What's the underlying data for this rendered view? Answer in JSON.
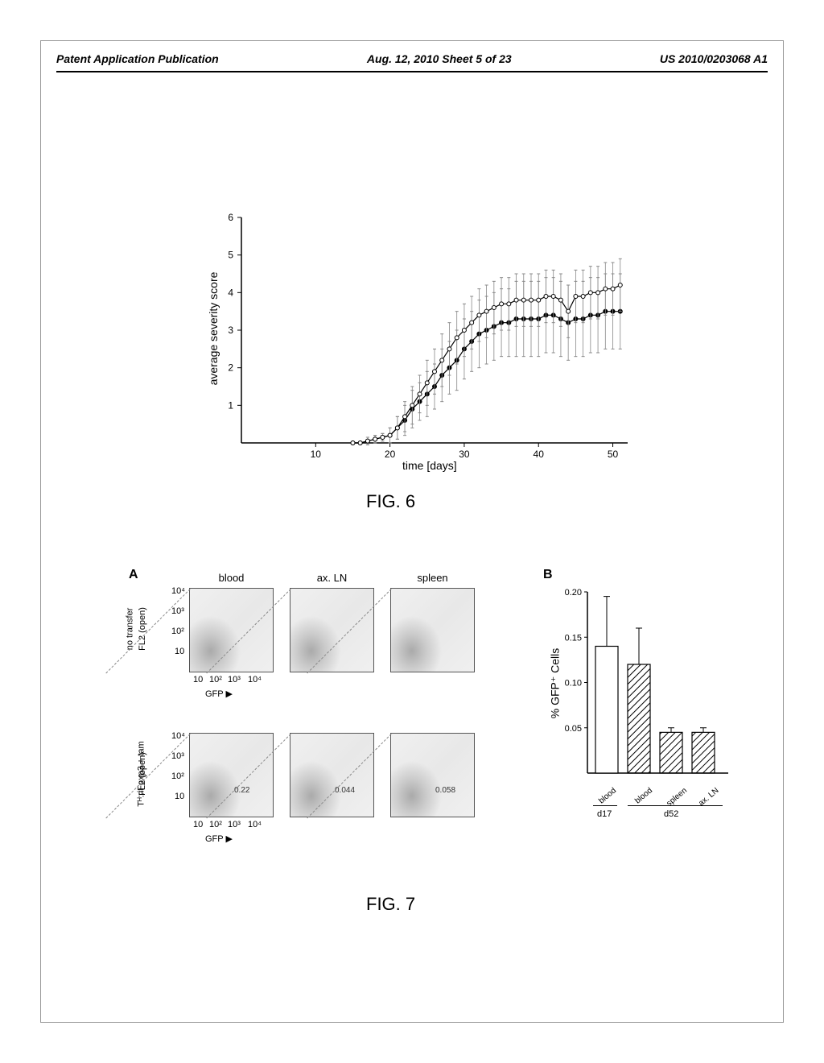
{
  "header": {
    "left": "Patent Application Publication",
    "center": "Aug. 12, 2010  Sheet 5 of 23",
    "right": "US 2010/0203068 A1"
  },
  "fig6": {
    "label": "FIG. 6",
    "type": "line",
    "ylabel": "average severity score",
    "xlabel": "time [days]",
    "xlim": [
      0,
      52
    ],
    "ylim": [
      0,
      6
    ],
    "xticks": [
      10,
      20,
      30,
      40,
      50
    ],
    "yticks": [
      1,
      2,
      3,
      4,
      5,
      6
    ],
    "title_fontsize": 14,
    "label_fontsize": 14,
    "line_color": "#000000",
    "marker_color": "#000000",
    "background_color": "#ffffff",
    "series": [
      {
        "name": "series-1",
        "style": "filled-circle",
        "x": [
          15,
          16,
          17,
          18,
          19,
          20,
          21,
          22,
          23,
          24,
          25,
          26,
          27,
          28,
          29,
          30,
          31,
          32,
          33,
          34,
          35,
          36,
          37,
          38,
          39,
          40,
          41,
          42,
          43,
          44,
          45,
          46,
          47,
          48,
          49,
          50,
          51
        ],
        "y": [
          0,
          0,
          0.05,
          0.1,
          0.15,
          0.2,
          0.4,
          0.6,
          0.9,
          1.1,
          1.3,
          1.5,
          1.8,
          2.0,
          2.2,
          2.5,
          2.7,
          2.9,
          3.0,
          3.1,
          3.2,
          3.2,
          3.3,
          3.3,
          3.3,
          3.3,
          3.4,
          3.4,
          3.3,
          3.2,
          3.3,
          3.3,
          3.4,
          3.4,
          3.5,
          3.5,
          3.5
        ],
        "err": [
          0,
          0,
          0.1,
          0.1,
          0.1,
          0.2,
          0.3,
          0.4,
          0.5,
          0.5,
          0.6,
          0.6,
          0.7,
          0.7,
          0.8,
          0.8,
          0.8,
          0.9,
          0.9,
          0.9,
          0.9,
          0.9,
          1.0,
          1.0,
          1.0,
          1.0,
          1.0,
          1.0,
          1.0,
          1.0,
          1.0,
          1.0,
          1.0,
          1.0,
          1.0,
          1.0,
          1.0
        ]
      },
      {
        "name": "series-2",
        "style": "open-circle",
        "x": [
          15,
          16,
          17,
          18,
          19,
          20,
          21,
          22,
          23,
          24,
          25,
          26,
          27,
          28,
          29,
          30,
          31,
          32,
          33,
          34,
          35,
          36,
          37,
          38,
          39,
          40,
          41,
          42,
          43,
          44,
          45,
          46,
          47,
          48,
          49,
          50,
          51
        ],
        "y": [
          0,
          0,
          0.05,
          0.1,
          0.15,
          0.2,
          0.4,
          0.7,
          1.0,
          1.3,
          1.6,
          1.9,
          2.2,
          2.5,
          2.8,
          3.0,
          3.2,
          3.4,
          3.5,
          3.6,
          3.7,
          3.7,
          3.8,
          3.8,
          3.8,
          3.8,
          3.9,
          3.9,
          3.8,
          3.5,
          3.9,
          3.9,
          4.0,
          4.0,
          4.1,
          4.1,
          4.2
        ],
        "err": [
          0,
          0,
          0.1,
          0.1,
          0.1,
          0.2,
          0.3,
          0.4,
          0.5,
          0.5,
          0.6,
          0.6,
          0.7,
          0.7,
          0.7,
          0.7,
          0.7,
          0.7,
          0.7,
          0.7,
          0.7,
          0.7,
          0.7,
          0.7,
          0.7,
          0.7,
          0.7,
          0.7,
          0.7,
          0.7,
          0.7,
          0.7,
          0.7,
          0.7,
          0.7,
          0.7,
          0.7
        ]
      }
    ]
  },
  "fig7": {
    "label": "FIG. 7",
    "panelA": {
      "label": "A",
      "columns": [
        "blood",
        "ax. LN",
        "spleen"
      ],
      "rows": [
        {
          "label_top": "no transfer",
          "label_bottom": "FL2 (open)"
        },
        {
          "label_top": "Tᴴ::iFoxp3 + tam",
          "label_bottom": "FL2 (open)"
        }
      ],
      "yaxis_ticks": [
        "10",
        "10²",
        "10³",
        "10⁴"
      ],
      "xaxis_ticks": [
        "10",
        "10²",
        "10³",
        "10⁴"
      ],
      "xlabel": "GFP",
      "values_row2": [
        "0.22",
        "0.044",
        "0.058"
      ],
      "plot_bg_color": "#e8e8e8",
      "border_color": "#555555"
    },
    "panelB": {
      "label": "B",
      "type": "bar",
      "ylabel": "% GFP⁺ Cells",
      "ylim": [
        0,
        0.2
      ],
      "yticks": [
        0.05,
        0.1,
        0.15,
        0.2
      ],
      "categories": [
        "blood",
        "blood",
        "spleen",
        "ax. LN"
      ],
      "values": [
        0.14,
        0.12,
        0.045,
        0.045
      ],
      "errors": [
        0.055,
        0.04,
        0.005,
        0.005
      ],
      "bar_styles": [
        "open",
        "hatched",
        "hatched",
        "hatched"
      ],
      "group_labels": [
        "d17",
        "d52"
      ],
      "group_spans": [
        [
          0,
          0
        ],
        [
          1,
          3
        ]
      ],
      "bar_border_color": "#000000",
      "bar_fill_color": "#ffffff"
    }
  }
}
